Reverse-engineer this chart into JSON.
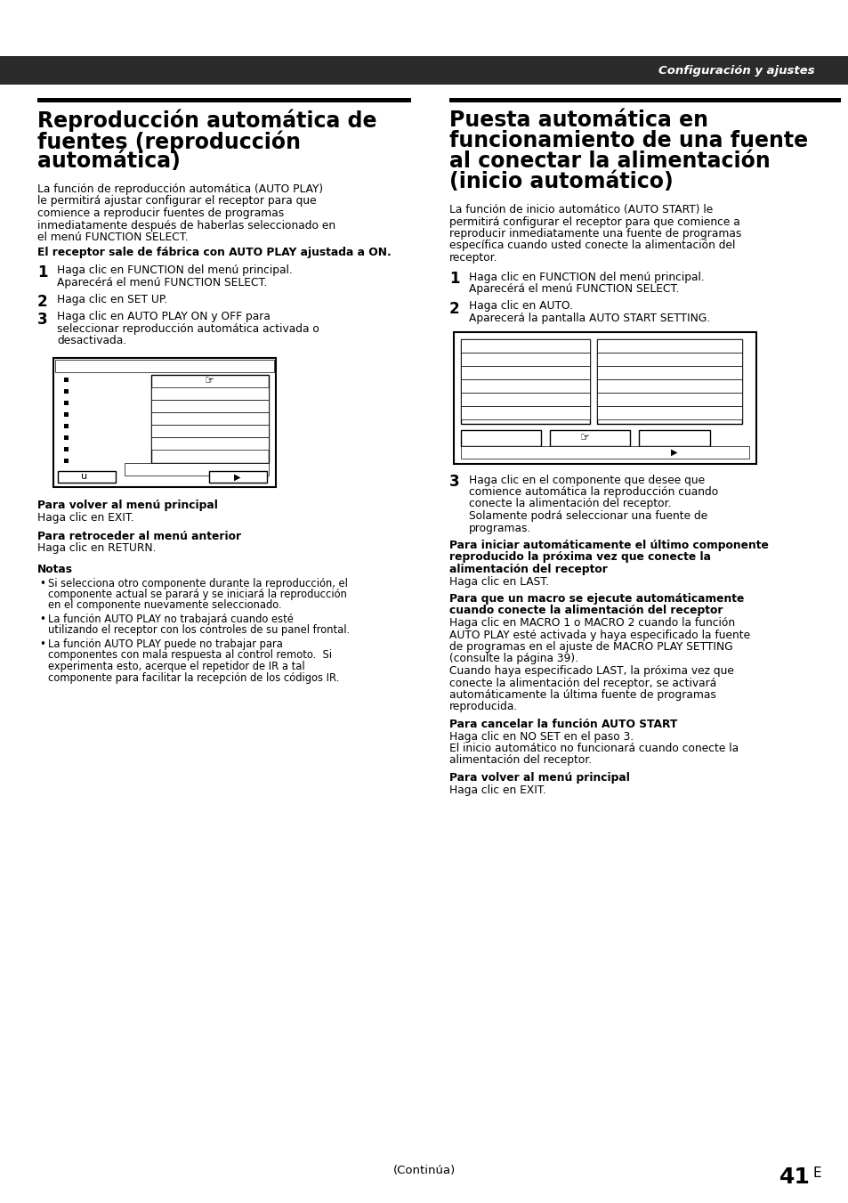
{
  "bg_color": "#ffffff",
  "header_bg": "#2b2b2b",
  "header_text": "Configuración y ajustes",
  "header_text_color": "#ffffff",
  "left_title_lines": [
    "Reproducción automática de",
    "fuentes (reproducción",
    "automática)"
  ],
  "right_title_lines": [
    "Puesta automática en",
    "funcionamiento de una fuente",
    "al conectar la alimentación",
    "(inicio automático)"
  ],
  "left_intro_lines": [
    "La función de reproducción automática (AUTO PLAY)",
    "le permitirá ajustar configurar el receptor para que",
    "comience a reproducir fuentes de programas",
    "inmediatamente después de haberlas seleccionado en",
    "el menú FUNCTION SELECT."
  ],
  "left_bold_note": "El receptor sale de fábrica con AUTO PLAY ajustada a ON.",
  "left_step1_lines": [
    "Haga clic en FUNCTION del menú principal.",
    "Aparecérá el menú FUNCTION SELECT."
  ],
  "left_step2_lines": [
    "Haga clic en SET UP."
  ],
  "left_step3_lines": [
    "Haga clic en AUTO PLAY ON y OFF para",
    "seleccionar reproducción automática activada o",
    "desactivada."
  ],
  "left_footer1_bold": "Para volver al menú principal",
  "left_footer1": "Haga clic en EXIT.",
  "left_footer2_bold": "Para retroceder al menú anterior",
  "left_footer2": "Haga clic en RETURN.",
  "left_notes_title": "Notas",
  "left_notes": [
    [
      "Si selecciona otro componente durante la reproducción, el",
      "componente actual se parará y se iniciará la reproducción",
      "en el componente nuevamente seleccionado."
    ],
    [
      "La función AUTO PLAY no trabajará cuando esté",
      "utilizando el receptor con los controles de su panel frontal."
    ],
    [
      "La función AUTO PLAY puede no trabajar para",
      "componentes con mala respuesta al control remoto.  Si",
      "experimenta esto, acerque el repetidor de IR a tal",
      "componente para facilitar la recepción de los códigos IR."
    ]
  ],
  "right_intro_lines": [
    "La función de inicio automático (AUTO START) le",
    "permitirá configurar el receptor para que comience a",
    "reproducir inmediatamente una fuente de programas",
    "específica cuando usted conecte la alimentación del",
    "receptor."
  ],
  "right_step1_lines": [
    "Haga clic en FUNCTION del menú principal.",
    "Aparecérá el menú FUNCTION SELECT."
  ],
  "right_step2_lines": [
    "Haga clic en AUTO.",
    "Aparecerá la pantalla AUTO START SETTING."
  ],
  "right_step3_lines": [
    "Haga clic en el componente que desee que",
    "comience automática la reproducción cuando",
    "conecte la alimentación del receptor.",
    "Solamente podrá seleccionar una fuente de",
    "programas."
  ],
  "right_footer1_bold_lines": [
    "Para iniciar automáticamente el último componente",
    "reproducido la próxima vez que conecte la",
    "alimentación del receptor"
  ],
  "right_footer1": "Haga clic en LAST.",
  "right_footer2_bold_lines": [
    "Para que un macro se ejecute automáticamente",
    "cuando conecte la alimentación del receptor"
  ],
  "right_footer2_lines": [
    "Haga clic en MACRO 1 o MACRO 2 cuando la función",
    "AUTO PLAY esté activada y haya especificado la fuente",
    "de programas en el ajuste de MACRO PLAY SETTING",
    "(consulte la página 39).",
    "Cuando haya especificado LAST, la próxima vez que",
    "conecte la alimentación del receptor, se activará",
    "automáticamente la última fuente de programas",
    "reproducida."
  ],
  "right_footer3_bold": "Para cancelar la función AUTO START",
  "right_footer3_lines": [
    "Haga clic en NO SET en el paso 3.",
    "El inicio automático no funcionará cuando conecte la",
    "alimentación del receptor."
  ],
  "right_footer4_bold": "Para volver al menú principal",
  "right_footer4": "Haga clic en EXIT.",
  "bottom_text": "(Continúa)",
  "page_number": "41"
}
